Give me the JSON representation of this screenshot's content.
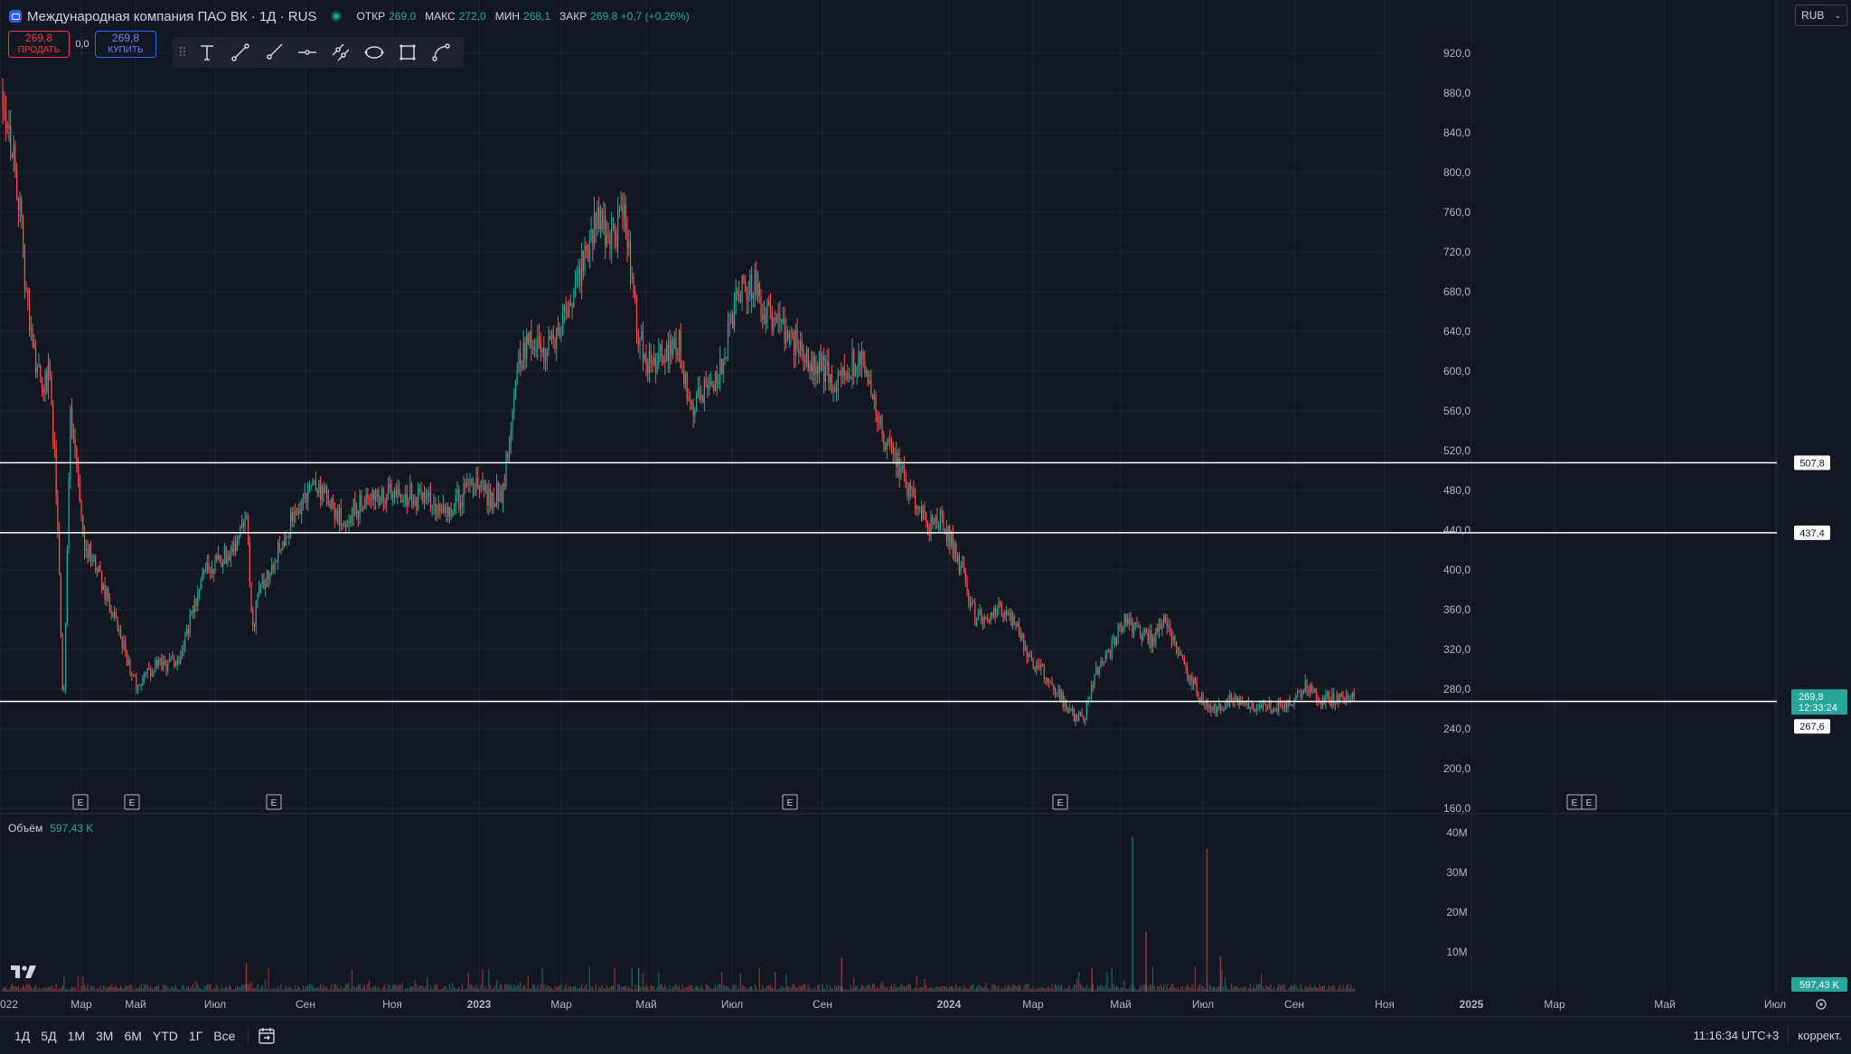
{
  "header": {
    "symbol_title": "Международная компания ПАО ВК · 1Д · RUS",
    "ohlc": [
      {
        "key": "ОТКР",
        "val": "269,0"
      },
      {
        "key": "МАКС",
        "val": "272,0"
      },
      {
        "key": "МИН",
        "val": "268,1"
      },
      {
        "key": "ЗАКР",
        "val": "269,8 +0,7 (+0,26%)"
      }
    ]
  },
  "trade": {
    "sell_price": "269,8",
    "sell_label": "ПРОДАТЬ",
    "spread": "0,0",
    "buy_price": "269,8",
    "buy_label": "КУПИТЬ"
  },
  "currency": {
    "value": "RUB"
  },
  "volume_legend": {
    "label": "Объём",
    "value": "597,43 K"
  },
  "bottombar": {
    "ranges": [
      "1Д",
      "5Д",
      "1М",
      "3М",
      "6М",
      "YTD",
      "1Г",
      "Все"
    ],
    "clock": "11:16:34 UTC+3",
    "adjust": "коррект."
  },
  "colors": {
    "up": "#26a69a",
    "down": "#ef5350",
    "background": "#131722",
    "grid": "#1f2430",
    "accent": "#2962ff"
  },
  "icons": [
    "grip-icon",
    "text-tool-icon",
    "trend-line-icon",
    "ray-icon",
    "horizontal-line-icon",
    "parallel-channel-icon",
    "ellipse-icon",
    "rectangle-icon",
    "path-icon",
    "calendar-icon"
  ],
  "chart_data": {
    "type": "candlestick",
    "ylim": [
      160,
      960
    ],
    "yticks": [
      "160,0",
      "200,0",
      "240,0",
      "280,0",
      "320,0",
      "360,0",
      "400,0",
      "440,0",
      "480,0",
      "520,0",
      "560,0",
      "600,0",
      "640,0",
      "680,0",
      "720,0",
      "760,0",
      "800,0",
      "840,0",
      "880,0",
      "920,0"
    ],
    "xlabels": [
      "022",
      "Мар",
      "Май",
      "Июл",
      "Сен",
      "Ноя",
      "2023",
      "Мар",
      "Май",
      "Июл",
      "Сен",
      "2024",
      "Мар",
      "Май",
      "Июл",
      "Сен",
      "Ноя",
      "2025",
      "Мар",
      "Май",
      "Июл"
    ],
    "horizontal_levels": [
      507.8,
      437.4,
      267.6
    ],
    "level_labels": [
      "507,8",
      "437,4",
      "267,6"
    ],
    "last_price": "269,8",
    "countdown": "12:33:24",
    "event_markers": [
      "E",
      "E",
      "E",
      "E",
      "E",
      "E",
      "E"
    ],
    "price_path": [
      [
        0,
        885
      ],
      [
        0.01,
        800
      ],
      [
        0.02,
        640
      ],
      [
        0.03,
        580
      ],
      [
        0.035,
        600
      ],
      [
        0.04,
        470
      ],
      [
        0.045,
        250
      ],
      [
        0.05,
        560
      ],
      [
        0.06,
        430
      ],
      [
        0.07,
        400
      ],
      [
        0.085,
        340
      ],
      [
        0.1,
        280
      ],
      [
        0.11,
        300
      ],
      [
        0.13,
        310
      ],
      [
        0.15,
        400
      ],
      [
        0.17,
        420
      ],
      [
        0.18,
        460
      ],
      [
        0.185,
        340
      ],
      [
        0.19,
        380
      ],
      [
        0.21,
        440
      ],
      [
        0.23,
        490
      ],
      [
        0.25,
        450
      ],
      [
        0.27,
        470
      ],
      [
        0.29,
        480
      ],
      [
        0.31,
        470
      ],
      [
        0.33,
        460
      ],
      [
        0.35,
        490
      ],
      [
        0.36,
        470
      ],
      [
        0.37,
        480
      ],
      [
        0.38,
        600
      ],
      [
        0.39,
        640
      ],
      [
        0.4,
        610
      ],
      [
        0.415,
        650
      ],
      [
        0.425,
        690
      ],
      [
        0.44,
        760
      ],
      [
        0.45,
        730
      ],
      [
        0.46,
        760
      ],
      [
        0.47,
        640
      ],
      [
        0.48,
        600
      ],
      [
        0.49,
        620
      ],
      [
        0.5,
        630
      ],
      [
        0.51,
        560
      ],
      [
        0.52,
        580
      ],
      [
        0.53,
        600
      ],
      [
        0.545,
        680
      ],
      [
        0.555,
        690
      ],
      [
        0.565,
        660
      ],
      [
        0.575,
        650
      ],
      [
        0.59,
        620
      ],
      [
        0.6,
        610
      ],
      [
        0.615,
        590
      ],
      [
        0.625,
        600
      ],
      [
        0.635,
        620
      ],
      [
        0.645,
        560
      ],
      [
        0.66,
        510
      ],
      [
        0.675,
        470
      ],
      [
        0.685,
        445
      ],
      [
        0.695,
        450
      ],
      [
        0.71,
        400
      ],
      [
        0.72,
        350
      ],
      [
        0.735,
        360
      ],
      [
        0.75,
        345
      ],
      [
        0.76,
        310
      ],
      [
        0.775,
        290
      ],
      [
        0.79,
        255
      ],
      [
        0.8,
        250
      ],
      [
        0.81,
        300
      ],
      [
        0.82,
        320
      ],
      [
        0.83,
        350
      ],
      [
        0.84,
        340
      ],
      [
        0.85,
        330
      ],
      [
        0.86,
        350
      ],
      [
        0.87,
        320
      ],
      [
        0.875,
        300
      ],
      [
        0.885,
        275
      ],
      [
        0.895,
        260
      ],
      [
        0.91,
        270
      ],
      [
        0.925,
        265
      ],
      [
        0.94,
        262
      ],
      [
        0.955,
        270
      ],
      [
        0.965,
        285
      ],
      [
        0.975,
        268
      ],
      [
        0.985,
        270
      ],
      [
        1.0,
        270
      ]
    ],
    "volume_axis_ticks": [
      "10M",
      "20M",
      "30M",
      "40M"
    ],
    "volume_last": "597,43 K"
  }
}
